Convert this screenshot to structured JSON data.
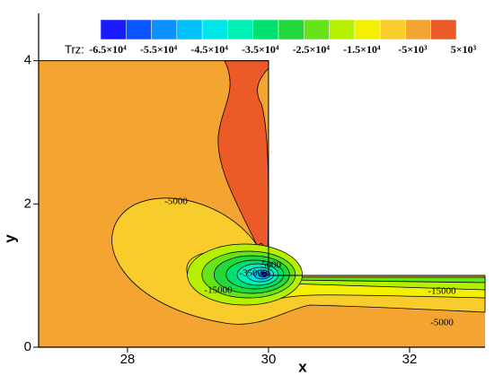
{
  "chart_data": {
    "type": "contour",
    "x_label": "x",
    "y_label": "y",
    "xlim": [
      26.74,
      33.07
    ],
    "xticks": [
      28,
      30,
      32
    ],
    "ylim": [
      0,
      4.66
    ],
    "yticks": [
      0,
      2,
      4
    ],
    "colorbar": {
      "label": "Trz:",
      "range": [
        -65000,
        5000
      ],
      "colors": [
        "#1a1aff",
        "#0a55ff",
        "#0a90ff",
        "#00c0f8",
        "#00e6e6",
        "#00f0b4",
        "#00e070",
        "#22d83a",
        "#66e41a",
        "#b4f000",
        "#f2f000",
        "#f8cc2a",
        "#f4a531",
        "#ec5a28"
      ],
      "ticks": [
        {
          "value": -65000,
          "label": "-6.5×10⁴"
        },
        {
          "value": -55000,
          "label": "-5.5×10⁴"
        },
        {
          "value": -45000,
          "label": "-4.5×10⁴"
        },
        {
          "value": -35000,
          "label": "-3.5×10⁴"
        },
        {
          "value": -25000,
          "label": "-2.5×10⁴"
        },
        {
          "value": -15000,
          "label": "-1.5×10⁴"
        },
        {
          "value": -5000,
          "label": "-5×10³"
        },
        {
          "value": 5000,
          "label": "5×10³"
        }
      ]
    },
    "contour_labels": [
      "-5000",
      "-15000",
      "-35000",
      "5000",
      "-15000",
      "-5000"
    ]
  }
}
